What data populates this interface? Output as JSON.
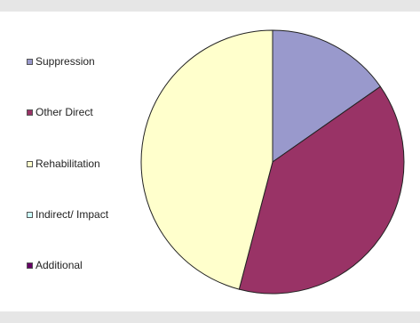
{
  "chart_data": {
    "type": "pie",
    "title": "",
    "legend_position": "left",
    "series": [
      {
        "name": "Suppression",
        "value": 15.3,
        "color": "#9999cc"
      },
      {
        "name": "Other Direct",
        "value": 38.8,
        "color": "#993366"
      },
      {
        "name": "Rehabilitation",
        "value": 45.9,
        "color": "#ffffcc"
      },
      {
        "name": "Indirect/ Impact",
        "value": 0,
        "color": "#ccffff"
      },
      {
        "name": "Additional",
        "value": 0,
        "color": "#660066"
      }
    ],
    "start_angle_deg": 0,
    "direction": "clockwise"
  },
  "colors": {
    "background": "#ffffff",
    "frame": "#e6e6e6",
    "slice_border": "#222222"
  }
}
